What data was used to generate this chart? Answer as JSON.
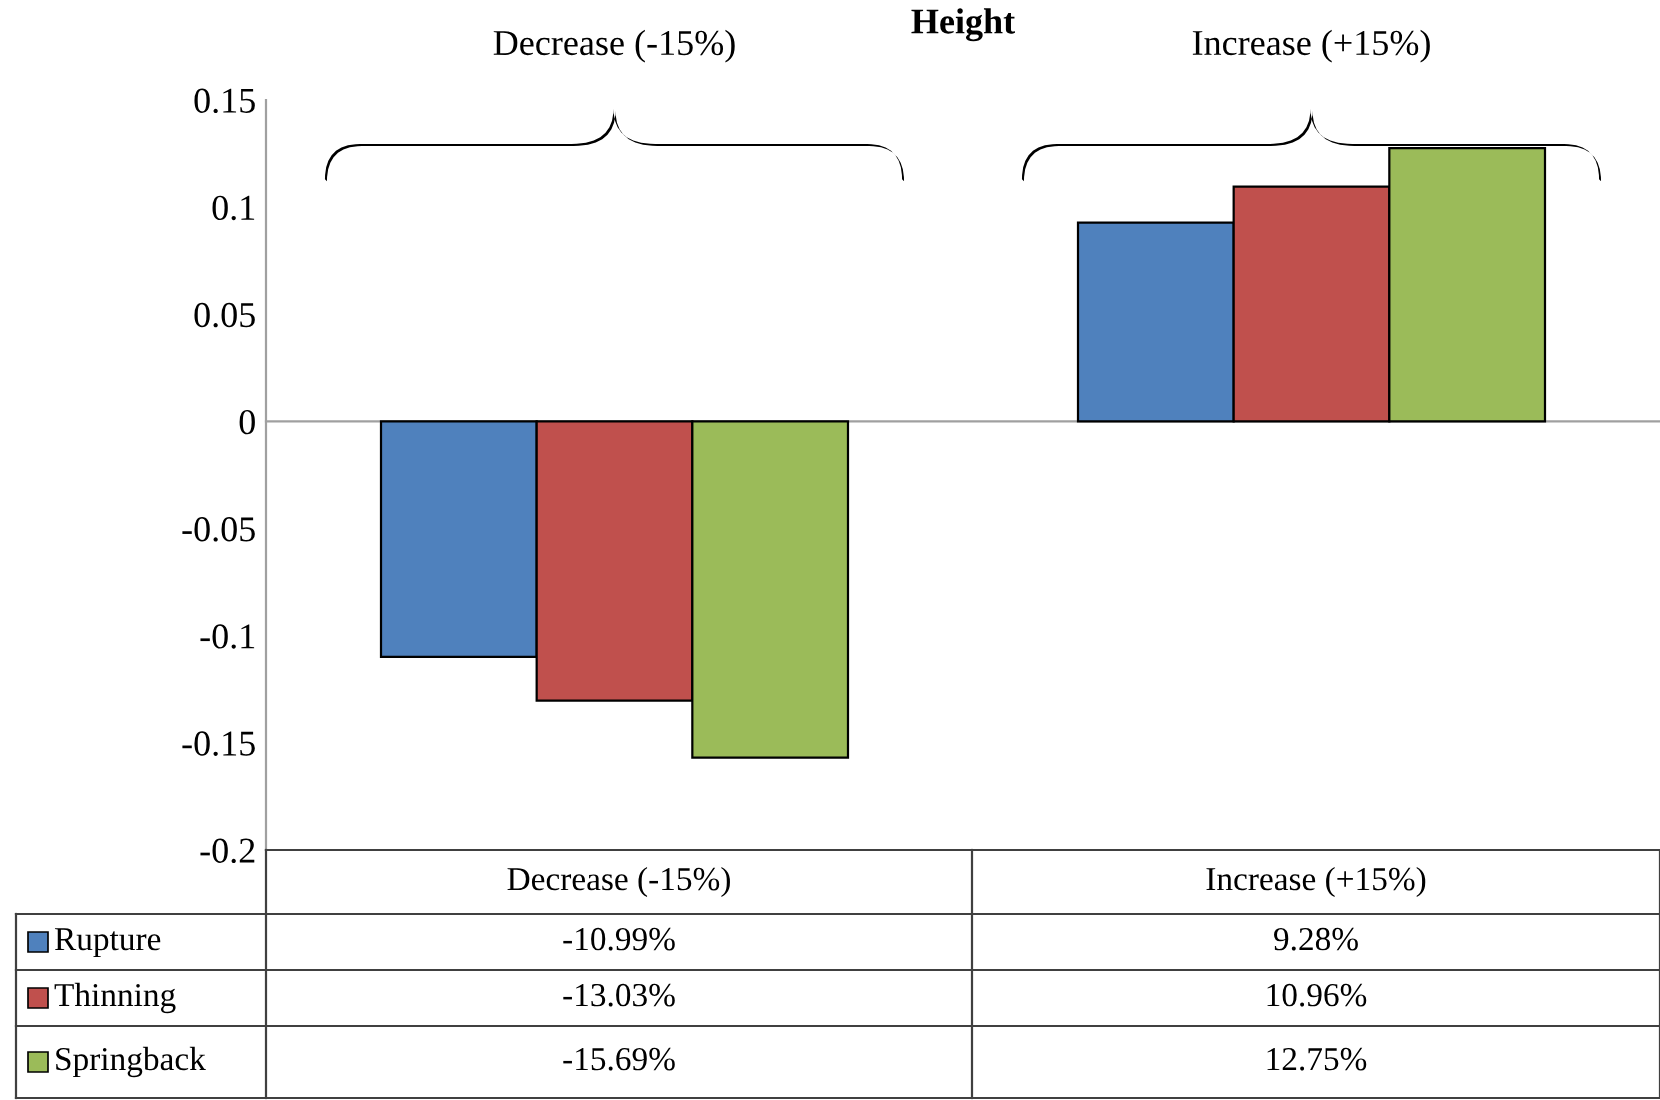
{
  "chart_data": {
    "type": "bar",
    "title": "Height",
    "categories": [
      "Decrease (-15%)",
      "Increase (+15%)"
    ],
    "series": [
      {
        "name": "Rupture",
        "color": "#4f81bd",
        "values": [
          -0.1099,
          0.0928
        ],
        "value_labels": [
          "-10.99%",
          "9.28%"
        ]
      },
      {
        "name": "Thinning",
        "color": "#c0504d",
        "values": [
          -0.1303,
          0.1096
        ],
        "value_labels": [
          "-13.03%",
          "10.96%"
        ]
      },
      {
        "name": "Springback",
        "color": "#9bbb59",
        "values": [
          -0.1569,
          0.1275
        ],
        "value_labels": [
          "-15.69%",
          "12.75%"
        ]
      }
    ],
    "ylim": [
      -0.2,
      0.15
    ],
    "yticks": [
      -0.2,
      -0.15,
      -0.1,
      -0.05,
      0,
      0.05,
      0.1,
      0.15
    ],
    "annotations": [
      "Decrease (-15%)",
      "Increase (+15%)"
    ],
    "legend": "bottom"
  }
}
